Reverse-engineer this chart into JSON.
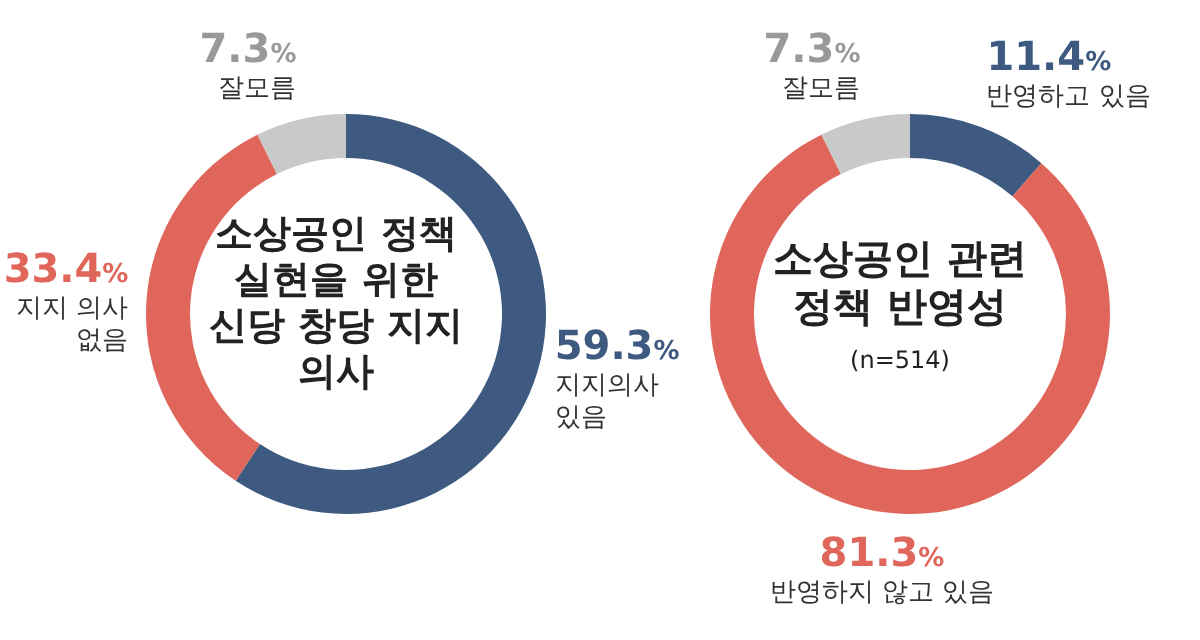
{
  "chart_data": [
    {
      "type": "donut",
      "title": "소상공인 정책 실현을 위한 신당 창당 지지 의사",
      "categories": [
        "지지의사 있음",
        "지지 의사 없음",
        "잘모름"
      ],
      "values": [
        59.3,
        33.4,
        7.3
      ],
      "colors": [
        "#3e5a80",
        "#e0665b",
        "#c9c9c9"
      ],
      "value_labels": [
        "59.3%",
        "33.4%",
        "7.3%"
      ]
    },
    {
      "type": "donut",
      "title": "소상공인 관련 정책 반영성",
      "subtitle": "(n=514)",
      "categories": [
        "반영하고 있음",
        "반영하지 않고 있음",
        "잘모름"
      ],
      "values": [
        11.4,
        81.3,
        7.3
      ],
      "colors": [
        "#3e5a80",
        "#e0665b",
        "#c9c9c9"
      ],
      "value_labels": [
        "11.4%",
        "81.3%",
        "7.3%"
      ]
    }
  ]
}
